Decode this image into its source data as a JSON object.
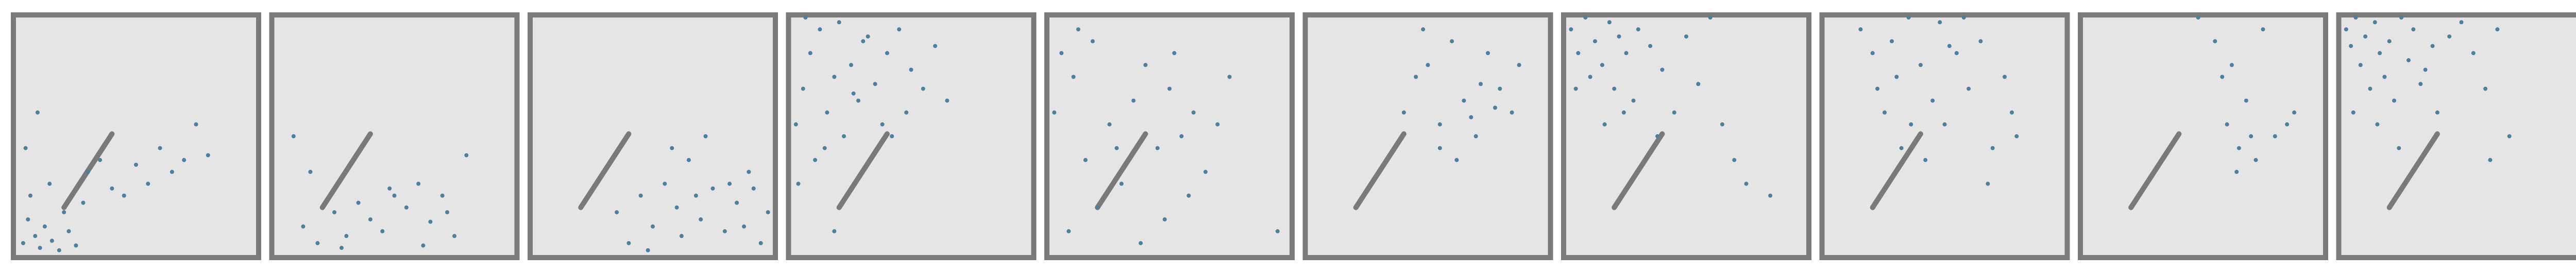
{
  "chart_data": [
    {
      "type": "scatter",
      "color": "#4f7f99",
      "xlim": [
        0,
        100
      ],
      "ylim": [
        0,
        100
      ],
      "x": [
        3,
        5,
        6,
        8,
        10,
        12,
        14,
        15,
        18,
        20,
        22,
        25,
        28,
        30,
        35,
        40,
        45,
        50,
        55,
        60,
        65,
        70,
        75,
        80,
        4,
        9
      ],
      "y": [
        5,
        15,
        25,
        8,
        3,
        12,
        30,
        6,
        2,
        18,
        10,
        4,
        22,
        35,
        40,
        28,
        25,
        38,
        30,
        45,
        35,
        40,
        55,
        42,
        45,
        60
      ]
    },
    {
      "type": "scatter",
      "color": "#4f7f99",
      "xlim": [
        0,
        100
      ],
      "ylim": [
        0,
        100
      ],
      "x": [
        8,
        12,
        18,
        25,
        30,
        35,
        40,
        45,
        50,
        55,
        60,
        65,
        70,
        75,
        80,
        15,
        28,
        48,
        62,
        72
      ],
      "y": [
        50,
        12,
        5,
        18,
        8,
        22,
        15,
        10,
        25,
        20,
        30,
        14,
        25,
        8,
        42,
        35,
        3,
        28,
        4,
        18
      ]
    },
    {
      "type": "scatter",
      "color": "#4f7f99",
      "xlim": [
        0,
        100
      ],
      "ylim": [
        0,
        100
      ],
      "x": [
        35,
        40,
        45,
        50,
        55,
        60,
        65,
        70,
        75,
        80,
        85,
        90,
        95,
        98,
        58,
        62,
        72,
        82,
        88,
        48,
        68,
        92
      ],
      "y": [
        18,
        5,
        25,
        12,
        30,
        20,
        40,
        15,
        28,
        10,
        22,
        35,
        5,
        18,
        45,
        8,
        50,
        30,
        12,
        2,
        25,
        28
      ]
    },
    {
      "type": "scatter",
      "color": "#4f7f99",
      "xlim": [
        0,
        100
      ],
      "ylim": [
        0,
        100
      ],
      "x": [
        2,
        5,
        8,
        10,
        12,
        15,
        18,
        20,
        22,
        25,
        28,
        30,
        35,
        38,
        40,
        45,
        48,
        50,
        55,
        60,
        65,
        3,
        14,
        26,
        32,
        42,
        6,
        18
      ],
      "y": [
        55,
        70,
        85,
        40,
        95,
        60,
        75,
        98,
        50,
        80,
        65,
        90,
        72,
        55,
        85,
        95,
        60,
        78,
        70,
        88,
        65,
        30,
        45,
        68,
        92,
        50,
        100,
        10
      ]
    },
    {
      "type": "scatter",
      "color": "#4f7f99",
      "xlim": [
        0,
        100
      ],
      "ylim": [
        0,
        100
      ],
      "x": [
        2,
        5,
        8,
        10,
        15,
        18,
        20,
        25,
        30,
        35,
        40,
        45,
        48,
        50,
        55,
        58,
        60,
        65,
        70,
        75,
        38,
        28,
        52,
        12,
        95
      ],
      "y": [
        60,
        85,
        10,
        75,
        40,
        90,
        20,
        55,
        30,
        65,
        80,
        45,
        15,
        70,
        50,
        25,
        60,
        35,
        55,
        75,
        5,
        45,
        85,
        95,
        10
      ]
    },
    {
      "type": "scatter",
      "color": "#4f7f99",
      "xlim": [
        0,
        100
      ],
      "ylim": [
        0,
        100
      ],
      "x": [
        40,
        45,
        50,
        55,
        60,
        65,
        70,
        75,
        80,
        85,
        88,
        55,
        62,
        72,
        78,
        48,
        68
      ],
      "y": [
        60,
        75,
        80,
        55,
        90,
        65,
        50,
        85,
        70,
        60,
        80,
        45,
        40,
        72,
        62,
        95,
        58
      ]
    },
    {
      "type": "scatter",
      "color": "#4f7f99",
      "xlim": [
        0,
        100
      ],
      "ylim": [
        0,
        100
      ],
      "x": [
        2,
        5,
        8,
        10,
        12,
        15,
        18,
        20,
        22,
        25,
        28,
        30,
        35,
        40,
        45,
        50,
        55,
        60,
        65,
        70,
        75,
        4,
        16,
        24,
        38,
        85
      ],
      "y": [
        95,
        85,
        100,
        75,
        90,
        80,
        98,
        70,
        92,
        85,
        65,
        95,
        88,
        78,
        60,
        92,
        72,
        100,
        55,
        40,
        30,
        70,
        55,
        60,
        50,
        25
      ]
    },
    {
      "type": "scatter",
      "color": "#4f7f99",
      "xlim": [
        0,
        100
      ],
      "ylim": [
        0,
        100
      ],
      "x": [
        15,
        20,
        22,
        25,
        28,
        30,
        35,
        40,
        45,
        48,
        50,
        55,
        60,
        65,
        70,
        75,
        78,
        80,
        32,
        42,
        58,
        68,
        36,
        52
      ],
      "y": [
        95,
        85,
        70,
        60,
        90,
        75,
        100,
        80,
        65,
        98,
        55,
        85,
        70,
        90,
        45,
        75,
        60,
        50,
        45,
        40,
        100,
        30,
        55,
        88
      ]
    },
    {
      "type": "scatter",
      "color": "#4f7f99",
      "xlim": [
        0,
        100
      ],
      "ylim": [
        0,
        100
      ],
      "x": [
        48,
        55,
        58,
        60,
        62,
        65,
        68,
        72,
        75,
        80,
        85,
        88,
        70,
        64
      ],
      "y": [
        100,
        90,
        75,
        55,
        80,
        45,
        65,
        40,
        95,
        50,
        55,
        60,
        50,
        35
      ]
    },
    {
      "type": "scatter",
      "color": "#4f7f99",
      "xlim": [
        0,
        100
      ],
      "ylim": [
        0,
        100
      ],
      "x": [
        2,
        4,
        6,
        8,
        10,
        12,
        14,
        16,
        18,
        20,
        22,
        25,
        28,
        30,
        35,
        38,
        40,
        45,
        50,
        55,
        60,
        65,
        70,
        5,
        15,
        24,
        33,
        62
      ],
      "y": [
        95,
        88,
        100,
        80,
        92,
        70,
        98,
        85,
        75,
        90,
        65,
        100,
        82,
        95,
        78,
        88,
        60,
        92,
        98,
        85,
        70,
        95,
        50,
        60,
        55,
        45,
        72,
        40
      ]
    }
  ]
}
